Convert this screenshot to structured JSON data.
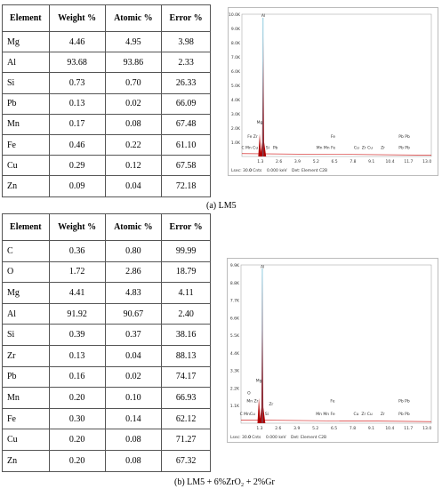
{
  "figures": [
    {
      "table": {
        "header": [
          "Element",
          "Weight %",
          "Atomic %",
          "Error %"
        ],
        "rows": [
          [
            "Mg",
            "4.46",
            "4.95",
            "3.98"
          ],
          [
            "Al",
            "93.68",
            "93.86",
            "2.33"
          ],
          [
            "Si",
            "0.73",
            "0.70",
            "26.33"
          ],
          [
            "Pb",
            "0.13",
            "0.02",
            "66.09"
          ],
          [
            "Mn",
            "0.17",
            "0.08",
            "67.48"
          ],
          [
            "Fe",
            "0.46",
            "0.22",
            "61.10"
          ],
          [
            "Cu",
            "0.29",
            "0.12",
            "67.58"
          ],
          [
            "Zn",
            "0.09",
            "0.04",
            "72.18"
          ]
        ]
      },
      "spectrum": {
        "y_labels": [
          "10.0K",
          "9.0K",
          "8.0K",
          "7.0K",
          "6.0K",
          "5.0K",
          "4.0K",
          "3.0K",
          "2.0K",
          "1.0K"
        ],
        "x_labels": [
          "1.3",
          "2.6",
          "3.9",
          "5.2",
          "6.5",
          "7.8",
          "9.1",
          "10.4",
          "11.7",
          "13.0"
        ],
        "peak_labels": [
          "Al",
          "Mg",
          "Fe Zr",
          "C Mn Cu",
          "Si",
          "Pb",
          "Fe",
          "Mn Mn Fe",
          "Cu",
          "Zr Cu",
          "Zr",
          "Pb Pb",
          "Pb Pb"
        ],
        "footer": [
          "Lsec: 30.0",
          "0 Cnts",
          "0.000 keV",
          "Det: Element C2B"
        ]
      },
      "caption": "(a) LM5"
    },
    {
      "table": {
        "header": [
          "Element",
          "Weight %",
          "Atomic %",
          "Error %"
        ],
        "rows": [
          [
            "C",
            "0.36",
            "0.80",
            "99.99"
          ],
          [
            "O",
            "1.72",
            "2.86",
            "18.79"
          ],
          [
            "Mg",
            "4.41",
            "4.83",
            "4.11"
          ],
          [
            "Al",
            "91.92",
            "90.67",
            "2.40"
          ],
          [
            "Si",
            "0.39",
            "0.37",
            "38.16"
          ],
          [
            "Zr",
            "0.13",
            "0.04",
            "88.13"
          ],
          [
            "Pb",
            "0.16",
            "0.02",
            "74.17"
          ],
          [
            "Mn",
            "0.20",
            "0.10",
            "66.93"
          ],
          [
            "Fe",
            "0.30",
            "0.14",
            "62.12"
          ],
          [
            "Cu",
            "0.20",
            "0.08",
            "71.27"
          ],
          [
            "Zn",
            "0.20",
            "0.08",
            "67.32"
          ]
        ]
      },
      "spectrum": {
        "y_labels": [
          "9.9K",
          "8.8K",
          "7.7K",
          "6.6K",
          "5.5K",
          "4.4K",
          "3.3K",
          "2.2K",
          "1.1K"
        ],
        "x_labels": [
          "1.3",
          "2.6",
          "3.9",
          "5.2",
          "6.5",
          "7.8",
          "9.1",
          "10.4",
          "11.7",
          "13.0"
        ],
        "peak_labels": [
          "Al",
          "Mg",
          "O",
          "Mn Zr",
          "C MnCu",
          "Si",
          "Zr",
          "Fe",
          "Mn Mn Fe",
          "Cu",
          "Zr Cu",
          "Zr",
          "Pb Pb",
          "Pb Pb"
        ],
        "footer": [
          "Lsec: 30.0",
          "0 Cnts",
          "0.000 keV",
          "Det: Element C2B"
        ]
      },
      "caption": "(b) LM5 + 6%ZrO₂ + 2%Gr"
    }
  ]
}
